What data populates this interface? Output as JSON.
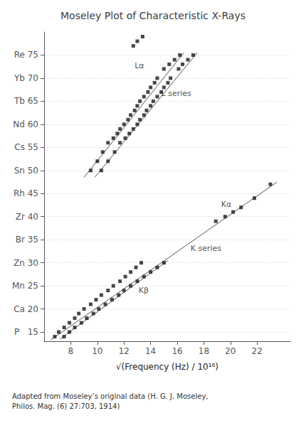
{
  "chart_data": {
    "type": "scatter",
    "title": "Moseley Plot of Characteristic X-Rays",
    "x_label": "√(Frequency (Hz) / 10¹⁶)",
    "caption": "Adapted from Moseley’s original data (H. G. J. Moseley,\nPhilos. Mag. (6) 27:703, 1914)",
    "xlim": [
      6.0,
      24.5
    ],
    "ylim": [
      13,
      80
    ],
    "xticks": [
      8,
      10,
      12,
      14,
      16,
      18,
      20,
      22
    ],
    "yticks": [
      {
        "value": 15,
        "label": "P   15"
      },
      {
        "value": 20,
        "label": "Ca 20"
      },
      {
        "value": 25,
        "label": "Mn 25"
      },
      {
        "value": 30,
        "label": "Zn 30"
      },
      {
        "value": 35,
        "label": "Br 35"
      },
      {
        "value": 40,
        "label": "Zr 40"
      },
      {
        "value": 45,
        "label": "Rh 45"
      },
      {
        "value": 50,
        "label": "Sn 50"
      },
      {
        "value": 55,
        "label": "Cs 55"
      },
      {
        "value": 60,
        "label": "Nd 60"
      },
      {
        "value": 65,
        "label": "Tb 65"
      },
      {
        "value": 70,
        "label": "Yb 70"
      },
      {
        "value": 75,
        "label": "Re 75"
      }
    ],
    "grid": true,
    "series": [
      {
        "type": "line",
        "line_style": "solid",
        "color": "#555555",
        "values": [
          [
            6.5,
            13.3
          ],
          [
            23.5,
            47.5
          ]
        ]
      },
      {
        "type": "line",
        "line_style": "solid",
        "color": "#555555",
        "values": [
          [
            7.2,
            13.5
          ],
          [
            15.3,
            30.5
          ]
        ]
      },
      {
        "type": "line",
        "line_style": "solid",
        "color": "#555555",
        "values": [
          [
            9.0,
            48.5
          ],
          [
            16.5,
            75.5
          ]
        ]
      },
      {
        "type": "line",
        "line_style": "solid",
        "color": "#555555",
        "values": [
          [
            9.8,
            48.5
          ],
          [
            17.5,
            75.5
          ]
        ]
      },
      {
        "type": "scatter",
        "marker": "square",
        "color": "#1a1a1a",
        "values": [
          [
            6.8,
            14
          ],
          [
            7.1,
            15
          ],
          [
            7.5,
            16
          ],
          [
            7.9,
            17
          ],
          [
            8.3,
            18
          ],
          [
            8.6,
            19
          ],
          [
            9.0,
            20
          ],
          [
            9.5,
            21
          ],
          [
            9.9,
            22
          ],
          [
            10.3,
            23
          ],
          [
            10.8,
            24
          ],
          [
            11.2,
            25
          ],
          [
            11.7,
            26
          ],
          [
            12.1,
            27
          ],
          [
            12.5,
            28
          ],
          [
            12.9,
            29
          ],
          [
            13.3,
            30
          ],
          [
            18.9,
            39
          ],
          [
            19.6,
            40
          ],
          [
            20.2,
            41
          ],
          [
            20.8,
            42
          ],
          [
            21.8,
            44
          ],
          [
            23.0,
            47
          ]
        ]
      },
      {
        "type": "scatter",
        "marker": "square",
        "color": "#1a1a1a",
        "values": [
          [
            7.5,
            14
          ],
          [
            7.9,
            15
          ],
          [
            8.3,
            16
          ],
          [
            8.8,
            17
          ],
          [
            9.2,
            18
          ],
          [
            9.7,
            19
          ],
          [
            10.1,
            20
          ],
          [
            10.6,
            21
          ],
          [
            11.1,
            22
          ],
          [
            11.6,
            23
          ],
          [
            12.0,
            24
          ],
          [
            12.5,
            25
          ],
          [
            13.0,
            26
          ],
          [
            13.5,
            27
          ],
          [
            14.0,
            28
          ],
          [
            14.5,
            29
          ],
          [
            15.0,
            30
          ]
        ]
      },
      {
        "type": "scatter",
        "marker": "square",
        "color": "#1a1a1a",
        "values": [
          [
            9.5,
            50
          ],
          [
            10.0,
            52
          ],
          [
            10.4,
            54
          ],
          [
            10.8,
            56
          ],
          [
            11.2,
            57
          ],
          [
            11.5,
            58
          ],
          [
            11.7,
            59
          ],
          [
            12.0,
            60
          ],
          [
            12.3,
            61
          ],
          [
            12.5,
            62
          ],
          [
            12.8,
            63
          ],
          [
            13.0,
            64
          ],
          [
            13.2,
            65
          ],
          [
            13.5,
            66
          ],
          [
            13.8,
            67
          ],
          [
            14.0,
            68
          ],
          [
            14.3,
            69
          ],
          [
            14.5,
            70
          ],
          [
            15.0,
            72
          ],
          [
            15.4,
            73
          ],
          [
            15.8,
            74
          ],
          [
            16.2,
            75
          ],
          [
            12.7,
            77
          ],
          [
            13.0,
            78
          ],
          [
            13.4,
            79
          ]
        ]
      },
      {
        "type": "scatter",
        "marker": "square",
        "color": "#1a1a1a",
        "values": [
          [
            10.3,
            50
          ],
          [
            10.8,
            52
          ],
          [
            11.3,
            54
          ],
          [
            11.7,
            56
          ],
          [
            12.1,
            57
          ],
          [
            12.4,
            58
          ],
          [
            12.7,
            59
          ],
          [
            13.0,
            60
          ],
          [
            13.2,
            61
          ],
          [
            13.5,
            62
          ],
          [
            13.7,
            63
          ],
          [
            14.0,
            64
          ],
          [
            14.2,
            65
          ],
          [
            14.5,
            66
          ],
          [
            14.8,
            67
          ],
          [
            15.0,
            68
          ],
          [
            15.3,
            69
          ],
          [
            15.5,
            70
          ],
          [
            16.1,
            72
          ],
          [
            16.4,
            73
          ],
          [
            16.8,
            74
          ],
          [
            17.2,
            75
          ]
        ]
      }
    ],
    "annotations": [
      {
        "text": "Kα",
        "x": 19.3,
        "y": 41.5
      },
      {
        "text": "Kβ",
        "x": 13.1,
        "y": 22.8
      },
      {
        "text": "Lα",
        "x": 12.8,
        "y": 71.5
      },
      {
        "text": "L series",
        "x": 14.8,
        "y": 65.5
      },
      {
        "text": "K series",
        "x": 17.0,
        "y": 32.0
      }
    ]
  }
}
